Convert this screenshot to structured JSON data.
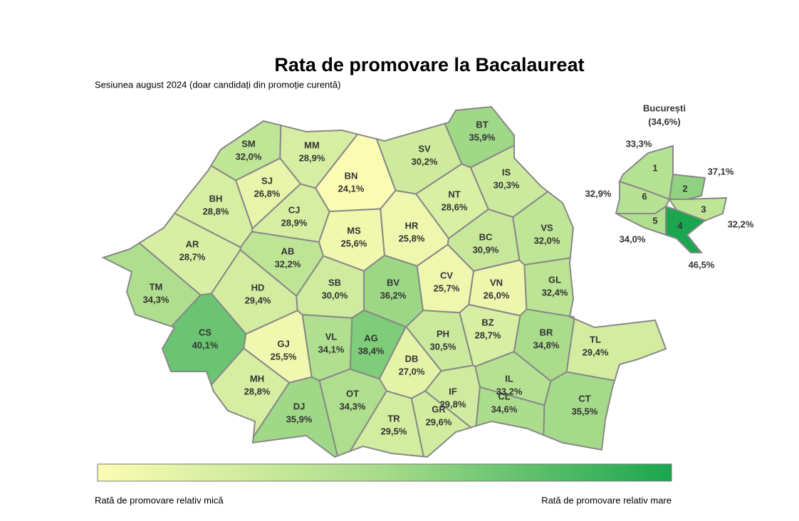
{
  "title": "Rata de promovare la Bacalaureat",
  "subtitle": "Sesiunea august 2024 (doar candidați din promoție curentă)",
  "counties": [
    {
      "code": "SM",
      "value": 32.0,
      "label": "32,0%"
    },
    {
      "code": "MM",
      "value": 28.9,
      "label": "28,9%"
    },
    {
      "code": "BT",
      "value": 35.9,
      "label": "35,9%"
    },
    {
      "code": "SV",
      "value": 30.2,
      "label": "30,2%"
    },
    {
      "code": "BN",
      "value": 24.1,
      "label": "24,1%"
    },
    {
      "code": "SJ",
      "value": 26.8,
      "label": "26,8%"
    },
    {
      "code": "BH",
      "value": 28.8,
      "label": "28,8%"
    },
    {
      "code": "CJ",
      "value": 28.9,
      "label": "28,9%"
    },
    {
      "code": "IS",
      "value": 30.3,
      "label": "30,3%"
    },
    {
      "code": "NT",
      "value": 28.6,
      "label": "28,6%"
    },
    {
      "code": "MS",
      "value": 25.6,
      "label": "25,6%"
    },
    {
      "code": "HR",
      "value": 25.8,
      "label": "25,8%"
    },
    {
      "code": "BC",
      "value": 30.9,
      "label": "30,9%"
    },
    {
      "code": "VS",
      "value": 32.0,
      "label": "32,0%"
    },
    {
      "code": "AR",
      "value": 28.7,
      "label": "28,7%"
    },
    {
      "code": "AB",
      "value": 32.2,
      "label": "32,2%"
    },
    {
      "code": "HD",
      "value": 29.4,
      "label": "29,4%"
    },
    {
      "code": "SB",
      "value": 30.0,
      "label": "30,0%"
    },
    {
      "code": "BV",
      "value": 36.2,
      "label": "36,2%"
    },
    {
      "code": "CV",
      "value": 25.7,
      "label": "25,7%"
    },
    {
      "code": "VN",
      "value": 26.0,
      "label": "26,0%"
    },
    {
      "code": "GL",
      "value": 32.4,
      "label": "32,4%"
    },
    {
      "code": "TM",
      "value": 34.3,
      "label": "34,3%"
    },
    {
      "code": "CS",
      "value": 40.1,
      "label": "40,1%"
    },
    {
      "code": "GJ",
      "value": 25.5,
      "label": "25,5%"
    },
    {
      "code": "VL",
      "value": 34.1,
      "label": "34,1%"
    },
    {
      "code": "AG",
      "value": 38.4,
      "label": "38,4%"
    },
    {
      "code": "PH",
      "value": 30.5,
      "label": "30,5%"
    },
    {
      "code": "BZ",
      "value": 28.7,
      "label": "28,7%"
    },
    {
      "code": "BR",
      "value": 34.8,
      "label": "34,8%"
    },
    {
      "code": "TL",
      "value": 29.4,
      "label": "29,4%"
    },
    {
      "code": "DB",
      "value": 27.0,
      "label": "27,0%"
    },
    {
      "code": "MH",
      "value": 28.8,
      "label": "28,8%"
    },
    {
      "code": "DJ",
      "value": 35.9,
      "label": "35,9%"
    },
    {
      "code": "OT",
      "value": 34.3,
      "label": "34,3%"
    },
    {
      "code": "IL",
      "value": 33.2,
      "label": "33,2%"
    },
    {
      "code": "IF",
      "value": 29.8,
      "label": "29,8%"
    },
    {
      "code": "CL",
      "value": 34.6,
      "label": "34,6%"
    },
    {
      "code": "CT",
      "value": 35.5,
      "label": "35,5%"
    },
    {
      "code": "TR",
      "value": 29.5,
      "label": "29,5%"
    },
    {
      "code": "GR",
      "value": 29.6,
      "label": "29,6%"
    }
  ],
  "bucharest": {
    "title": "București",
    "overall": "(34,6%)",
    "sectors": [
      {
        "name": "1",
        "value": 33.3,
        "label": "33,3%"
      },
      {
        "name": "2",
        "value": 37.1,
        "label": "37,1%"
      },
      {
        "name": "3",
        "value": 32.2,
        "label": "32,2%"
      },
      {
        "name": "4",
        "value": 46.5,
        "label": "46,5%"
      },
      {
        "name": "5",
        "value": 34.0,
        "label": "34,0%"
      },
      {
        "name": "6",
        "value": 32.9,
        "label": "32,9%"
      }
    ]
  },
  "legend": {
    "low": "Rată de promovare relativ mică",
    "high": "Rată de promovare relativ mare",
    "colors": [
      "#fbfcb4",
      "#a6db8a",
      "#1aa64f"
    ]
  }
}
